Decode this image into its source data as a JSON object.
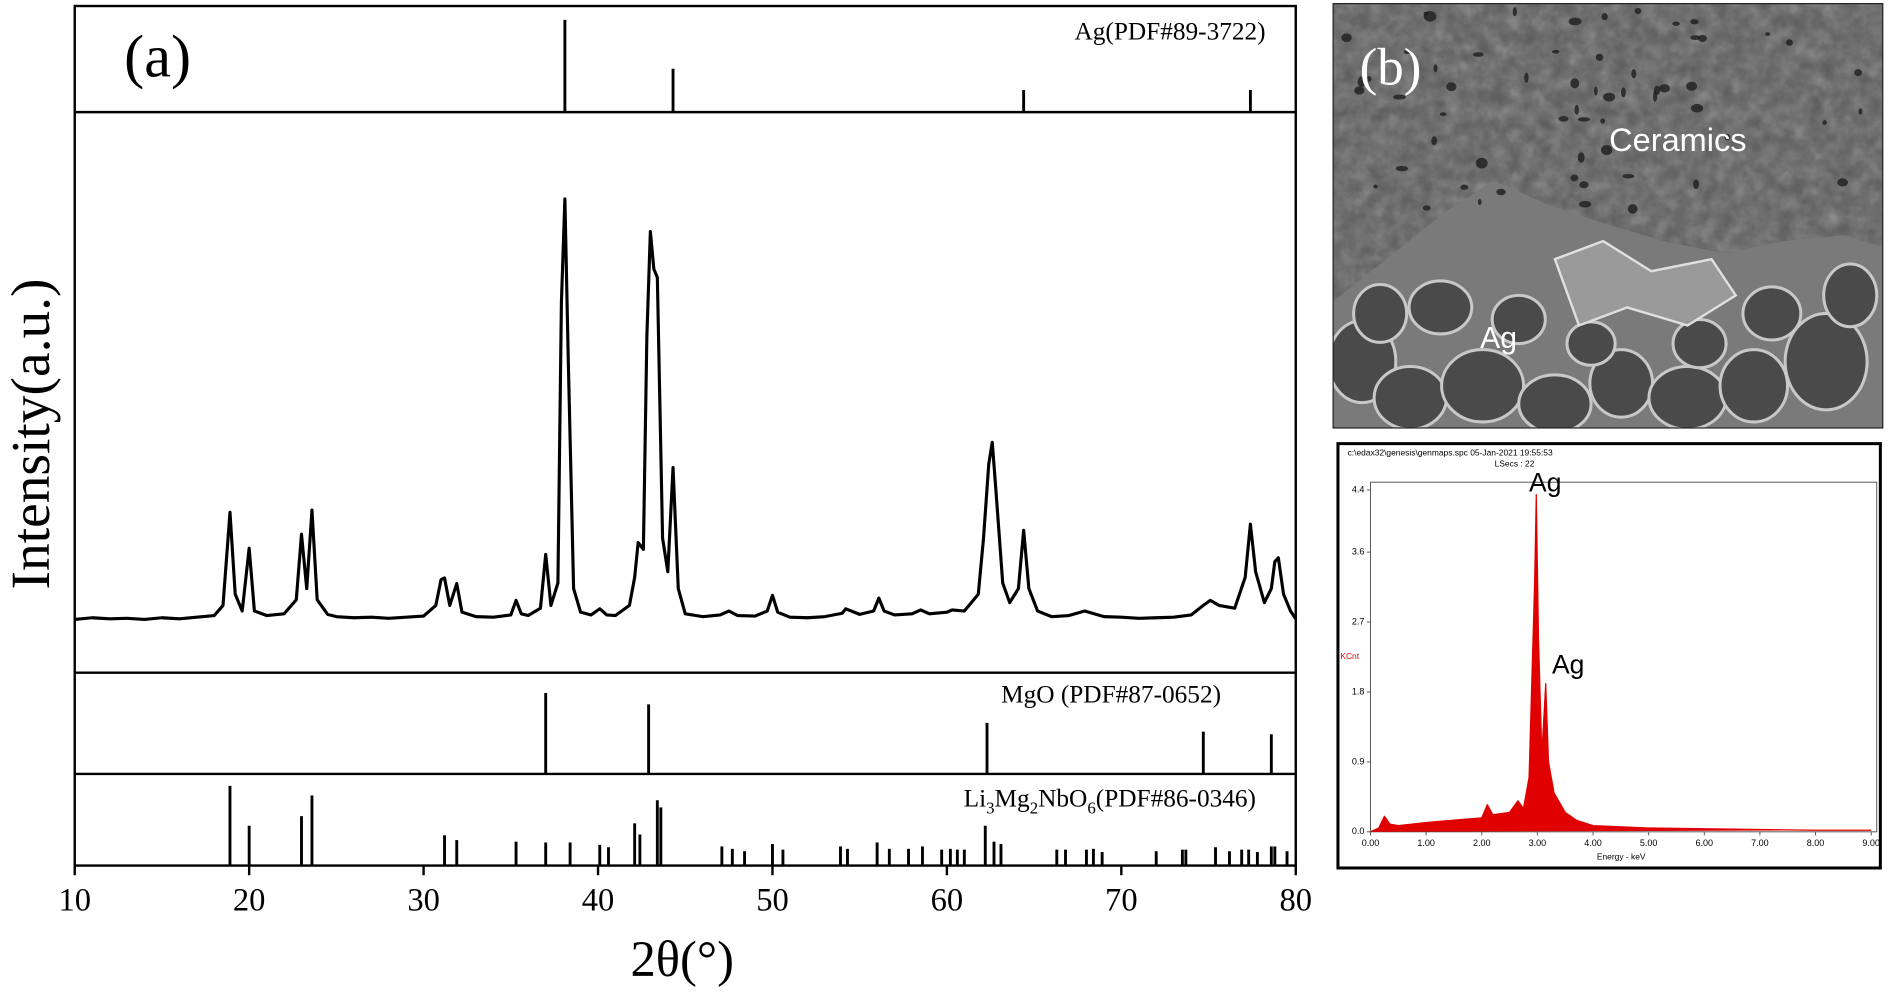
{
  "chart_data": [
    {
      "type": "stick",
      "panel_label": "(a)",
      "name": "Ag(PDF#89-3722)",
      "color": "#000000",
      "xlim": [
        10,
        80
      ],
      "ylim": [
        0,
        115
      ],
      "x": [
        38.1,
        44.3,
        64.4,
        77.4
      ],
      "values": [
        100,
        47,
        24,
        24
      ]
    },
    {
      "type": "line",
      "ylabel": "Intensity(a.u.)",
      "color": "#000000",
      "xlim": [
        10,
        80
      ],
      "ylim": [
        0,
        100
      ],
      "x": [
        10,
        11,
        12,
        13,
        14,
        15,
        16,
        17,
        18,
        18.5,
        18.9,
        19.2,
        19.6,
        20,
        20.3,
        21,
        22,
        22.7,
        23,
        23.3,
        23.6,
        23.9,
        24.5,
        25,
        26,
        27,
        28,
        29,
        30,
        30.7,
        31,
        31.2,
        31.5,
        31.9,
        32.2,
        33,
        34,
        35,
        35.3,
        35.6,
        36,
        36.7,
        37,
        37.3,
        37.7,
        37.9,
        38.1,
        38.3,
        38.6,
        39,
        39.6,
        40.1,
        40.5,
        41,
        41.8,
        42.1,
        42.3,
        42.6,
        42.8,
        43,
        43.2,
        43.4,
        43.7,
        44,
        44.3,
        44.6,
        45,
        46,
        47,
        47.5,
        48,
        49,
        49.7,
        50,
        50.3,
        51,
        52,
        53,
        54,
        54.2,
        55,
        55.8,
        56.1,
        56.4,
        57,
        58,
        58.5,
        59,
        60,
        60.3,
        61,
        61.8,
        62.1,
        62.4,
        62.6,
        62.8,
        63.2,
        63.6,
        64.1,
        64.4,
        64.7,
        65.2,
        66,
        67,
        67.9,
        69,
        70,
        71,
        72,
        73,
        74,
        74.7,
        75.1,
        75.6,
        76.5,
        77.1,
        77.4,
        77.7,
        78.2,
        78.6,
        78.8,
        79,
        79.3,
        79.7,
        80
      ],
      "values": [
        9.5,
        9.8,
        9.6,
        9.7,
        9.5,
        9.8,
        9.6,
        9.9,
        10.2,
        12,
        28.6,
        14,
        11,
        22.2,
        11,
        10.2,
        10.5,
        13,
        24.7,
        15,
        29,
        13,
        10.4,
        10,
        9.8,
        9.9,
        9.7,
        9.9,
        10.1,
        12,
        16.6,
        16.9,
        12,
        15.9,
        10.8,
        10,
        9.9,
        10.3,
        12.9,
        10.5,
        10.2,
        11.5,
        21.1,
        12,
        16,
        66,
        84.5,
        55,
        15,
        10.8,
        10.3,
        11.4,
        10.3,
        10.2,
        12,
        17,
        23.2,
        22,
        60,
        78.7,
        72,
        70.5,
        24,
        18,
        36.6,
        15,
        10.5,
        10,
        10.3,
        11,
        10.2,
        10.1,
        11,
        13.8,
        10.8,
        9.9,
        9.8,
        10,
        10.6,
        11.4,
        10.4,
        11,
        13.3,
        11,
        10.3,
        10.5,
        11.2,
        10.5,
        10.8,
        11.2,
        11,
        14,
        24,
        37.2,
        41.1,
        33,
        16,
        12.5,
        15,
        25.4,
        15,
        11,
        10,
        10.2,
        11,
        10,
        9.9,
        9.7,
        9.8,
        9.9,
        10.3,
        12,
        12.9,
        12,
        11.5,
        17,
        26.5,
        18,
        12.5,
        15,
        19.8,
        20.5,
        14,
        11,
        9.6
      ]
    },
    {
      "type": "stick",
      "name": "MgO (PDF#87-0652)",
      "color": "#000000",
      "xlim": [
        10,
        80
      ],
      "ylim": [
        0,
        115
      ],
      "x": [
        37.0,
        42.9,
        62.3,
        74.7,
        78.6
      ],
      "values": [
        92,
        79,
        58,
        48,
        45
      ]
    },
    {
      "type": "stick",
      "name": "Li3Mg2NbO6(PDF#86-0346)",
      "color": "#000000",
      "xlim": [
        10,
        80
      ],
      "ylim": [
        0,
        115
      ],
      "xticks": [
        10,
        20,
        30,
        40,
        50,
        60,
        70,
        80
      ],
      "xlabel": "2θ(°)",
      "x": [
        18.9,
        20.0,
        23.0,
        23.6,
        31.2,
        31.9,
        35.3,
        37.0,
        38.4,
        40.1,
        40.6,
        42.1,
        42.4,
        43.4,
        43.6,
        47.1,
        47.7,
        48.4,
        50.0,
        50.6,
        53.9,
        54.3,
        56.0,
        56.7,
        57.8,
        58.6,
        59.7,
        60.2,
        60.6,
        61.0,
        62.2,
        62.7,
        63.1,
        66.3,
        66.8,
        68.0,
        68.4,
        68.9,
        72.0,
        73.5,
        73.7,
        75.4,
        76.2,
        76.9,
        77.3,
        77.8,
        78.6,
        78.8,
        79.5
      ],
      "values": [
        100,
        50,
        62,
        88,
        38,
        32,
        30,
        29,
        29,
        26,
        23,
        53,
        39,
        82,
        73,
        24,
        21,
        18,
        27,
        20,
        24,
        21,
        29,
        21,
        21,
        24,
        20,
        21,
        20,
        20,
        50,
        30,
        27,
        20,
        20,
        20,
        21,
        17,
        18,
        20,
        20,
        23,
        18,
        20,
        20,
        17,
        24,
        24,
        18
      ]
    },
    {
      "type": "area",
      "header": "c:\\edax32\\genesis\\genmaps.spc   05-Jan-2021 19:55:53",
      "subheader": "LSecs : 22",
      "ylabel": "KCnt",
      "xlabel": "Energy - keV",
      "annotations": [
        "Ag",
        "Ag"
      ],
      "color": "#e00000",
      "xlim": [
        0,
        9.1
      ],
      "ylim": [
        0,
        4.5
      ],
      "xticks": [
        {
          "value": 0,
          "label": "0.00"
        },
        {
          "value": 1,
          "label": "1.00"
        },
        {
          "value": 2,
          "label": "2.00"
        },
        {
          "value": 3,
          "label": "3.00"
        },
        {
          "value": 4,
          "label": "4.00"
        },
        {
          "value": 5,
          "label": "5.00"
        },
        {
          "value": 6,
          "label": "6.00"
        },
        {
          "value": 7,
          "label": "7.00"
        },
        {
          "value": 8,
          "label": "8.00"
        },
        {
          "value": 9,
          "label": "9.00"
        }
      ],
      "yticks": [
        {
          "value": 0,
          "label": "0.0"
        },
        0.9,
        1.8,
        2.7,
        3.6,
        4.4
      ],
      "x": [
        0,
        0.15,
        0.25,
        0.35,
        0.5,
        1,
        1.5,
        2,
        2.1,
        2.2,
        2.5,
        2.65,
        2.75,
        2.85,
        2.95,
        2.98,
        3.02,
        3.08,
        3.15,
        3.2,
        3.3,
        3.5,
        3.7,
        4,
        5,
        6,
        7,
        8,
        9
      ],
      "values": [
        0,
        0.05,
        0.2,
        0.1,
        0.08,
        0.12,
        0.15,
        0.18,
        0.35,
        0.22,
        0.25,
        0.4,
        0.3,
        0.7,
        3.2,
        4.34,
        2.5,
        1,
        1.91,
        0.9,
        0.5,
        0.25,
        0.15,
        0.08,
        0.05,
        0.04,
        0.03,
        0.02,
        0.02
      ]
    }
  ],
  "image": {
    "panel_label": "(b)",
    "labels": [
      "Ceramics",
      "Ag"
    ]
  }
}
